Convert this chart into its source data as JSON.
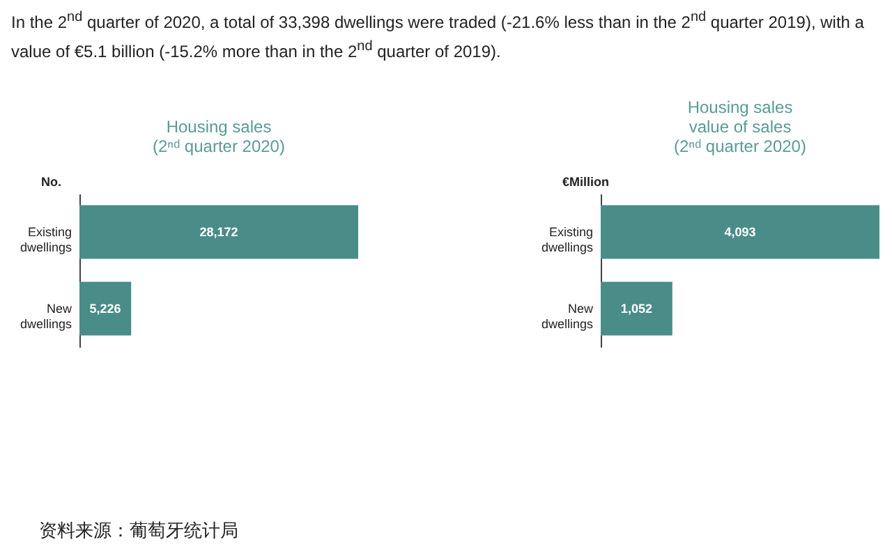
{
  "chart_data": [
    {
      "type": "bar",
      "orientation": "horizontal",
      "title": "Housing sales\n(2ⁿᵈ quarter 2020)",
      "ylabel": "No.",
      "categories": [
        "Existing dwellings",
        "New dwellings"
      ],
      "values": [
        28172,
        5226
      ],
      "color": "#4a8c87",
      "value_labels": [
        "28,172",
        "5,226"
      ],
      "annotations": [
        "In the 2$^{nd}$ quarter of 2020, a total of 33,398 dwellings were traded (-21.6% less than in the 2$^{nd}$ quarter 2019), with a value of €5.1 billion (-15.2% more than in the 2$^{nd}$ quarter of 2019).",
        "资料来源：葡萄牙统计局"
      ]
    },
    {
      "type": "bar",
      "orientation": "horizontal",
      "title": "Housing sales\nvalue of sales\n(2ⁿᵈ quarter 2020)",
      "ylabel": "€Million",
      "categories": [
        "Existing dwellings",
        "New dwellings"
      ],
      "values": [
        4093,
        1052
      ],
      "color": "#4a8c87",
      "value_labels": [
        "4,093",
        "1,052"
      ]
    }
  ]
}
